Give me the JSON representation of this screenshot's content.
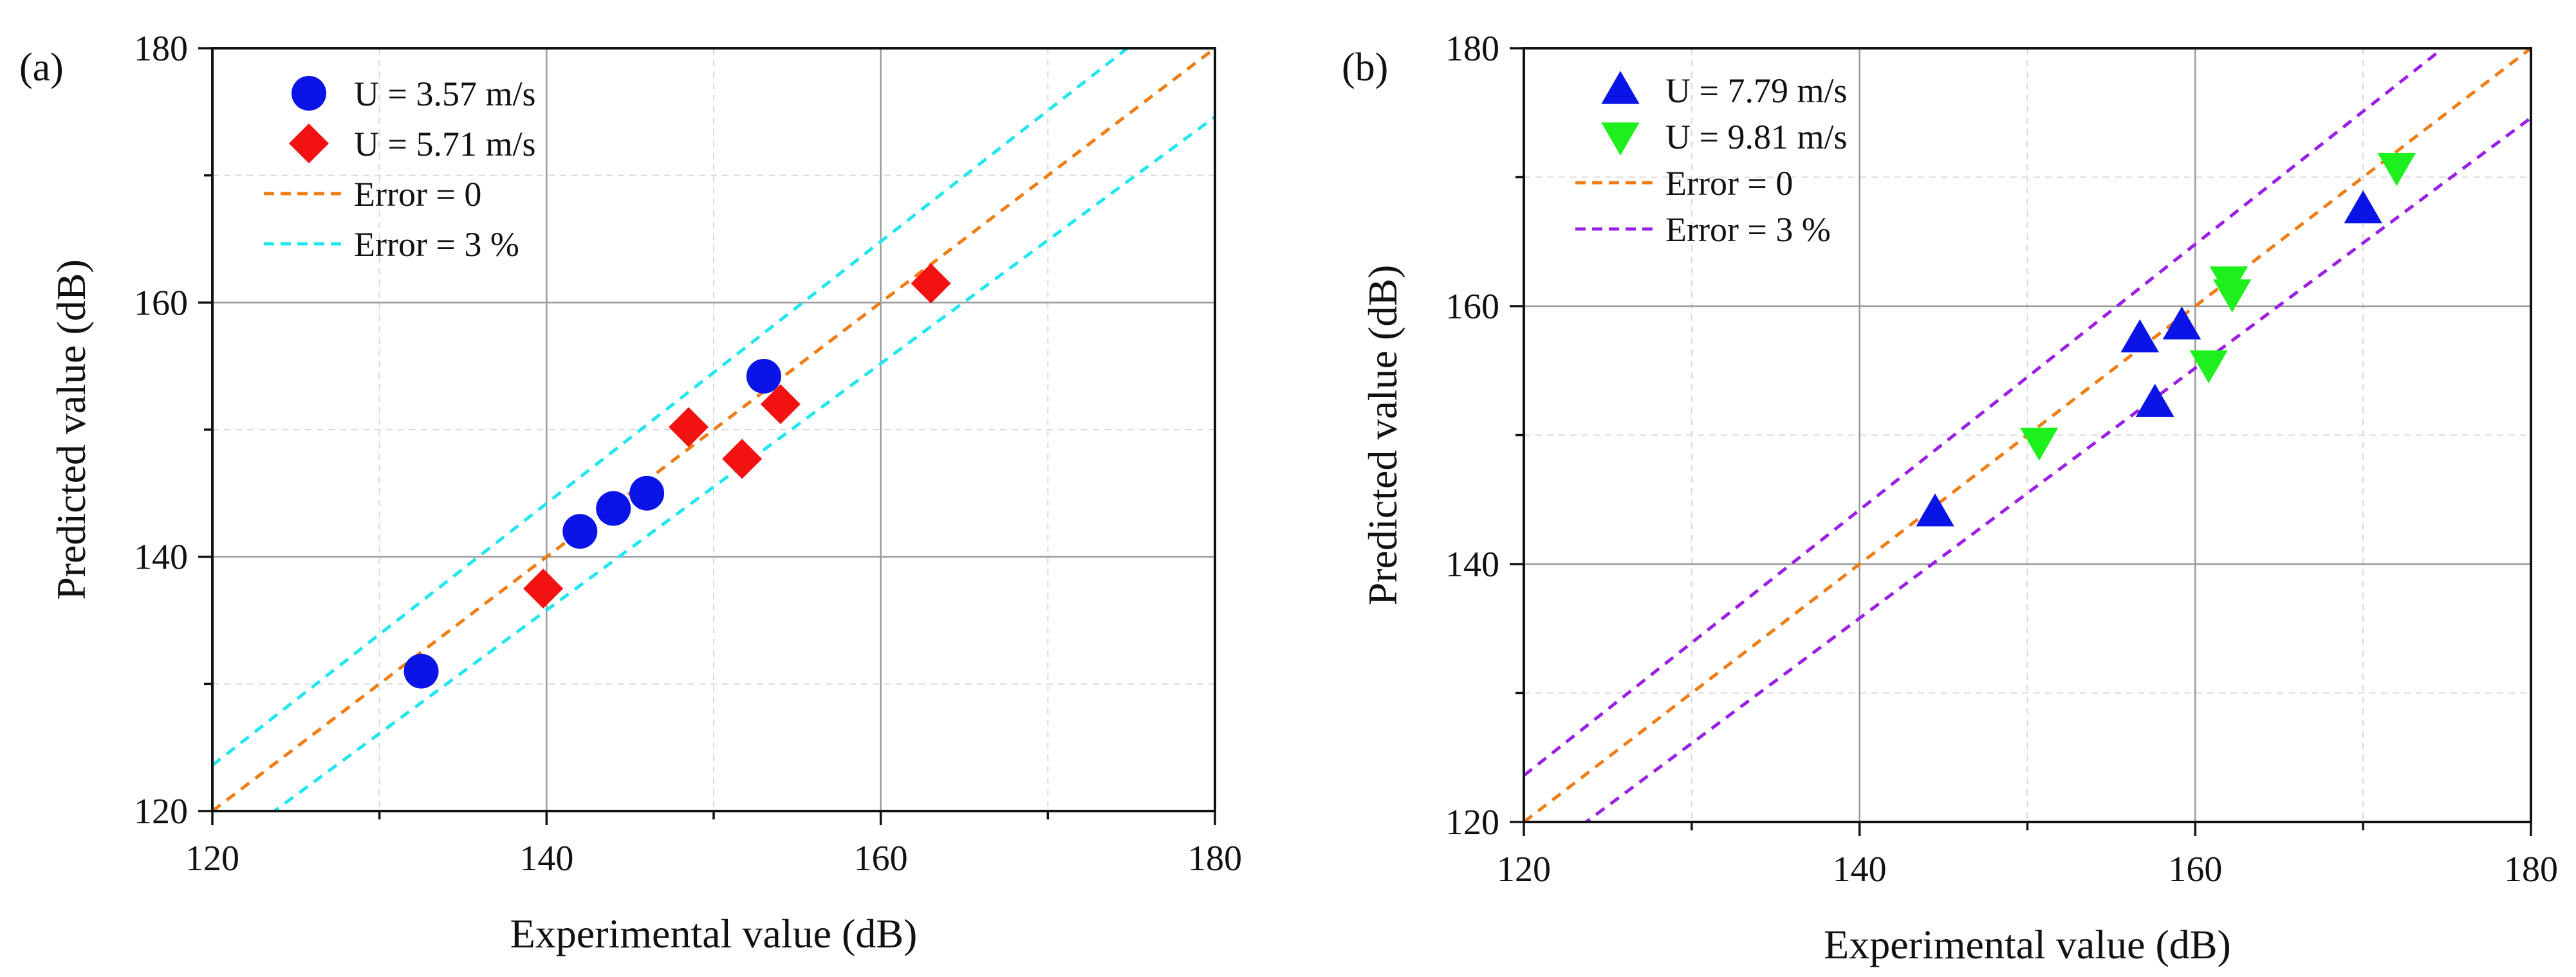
{
  "chart_data": [
    {
      "type": "scatter",
      "panel_label": "(a)",
      "xlabel": "Experimental value (dB)",
      "ylabel": "Predicted value (dB)",
      "xlim": [
        120,
        180
      ],
      "ylim": [
        120,
        180
      ],
      "xticks": [
        "120",
        "140",
        "160",
        "180"
      ],
      "yticks": [
        "120",
        "140",
        "160",
        "180"
      ],
      "grid": true,
      "legend_position": "top-left",
      "series": [
        {
          "name": "U = 3.57 m/s",
          "marker": "circle",
          "color": "#0a14e6",
          "points": [
            [
              132.5,
              131.0
            ],
            [
              142.0,
              142.0
            ],
            [
              144.0,
              143.8
            ],
            [
              146.0,
              145.0
            ],
            [
              153.0,
              154.2
            ]
          ]
        },
        {
          "name": "U = 5.71 m/s",
          "marker": "diamond",
          "color": "#f21212",
          "points": [
            [
              139.8,
              137.5
            ],
            [
              148.5,
              150.2
            ],
            [
              151.7,
              147.7
            ],
            [
              154.0,
              152.0
            ],
            [
              163.0,
              161.5
            ]
          ]
        }
      ],
      "lines": [
        {
          "name": "Error = 0",
          "color": "#f07c14",
          "kind": "identity"
        },
        {
          "name": "Error = 3 %",
          "color": "#22e6ee",
          "kind": "band",
          "percent": 3
        }
      ]
    },
    {
      "type": "scatter",
      "panel_label": "(b)",
      "xlabel": "Experimental value (dB)",
      "ylabel": "Predicted value (dB)",
      "xlim": [
        120,
        180
      ],
      "ylim": [
        120,
        180
      ],
      "xticks": [
        "120",
        "140",
        "160",
        "180"
      ],
      "yticks": [
        "120",
        "140",
        "160",
        "180"
      ],
      "grid": true,
      "legend_position": "top-left",
      "series": [
        {
          "name": "U = 7.79 m/s",
          "marker": "triangle-up",
          "color": "#0a14e6",
          "points": [
            [
              144.5,
              144.0
            ],
            [
              156.7,
              157.5
            ],
            [
              157.6,
              152.5
            ],
            [
              159.2,
              158.5
            ],
            [
              170.0,
              167.5
            ]
          ]
        },
        {
          "name": "U = 9.81 m/s",
          "marker": "triangle-down",
          "color": "#1ef01e",
          "points": [
            [
              150.7,
              149.5
            ],
            [
              160.8,
              155.5
            ],
            [
              162.0,
              162.0
            ],
            [
              162.2,
              161.0
            ],
            [
              172.0,
              170.8
            ]
          ]
        }
      ],
      "lines": [
        {
          "name": "Error = 0",
          "color": "#f07c14",
          "kind": "identity"
        },
        {
          "name": "Error = 3 %",
          "color": "#9b1ee6",
          "kind": "band",
          "percent": 3
        }
      ]
    }
  ]
}
